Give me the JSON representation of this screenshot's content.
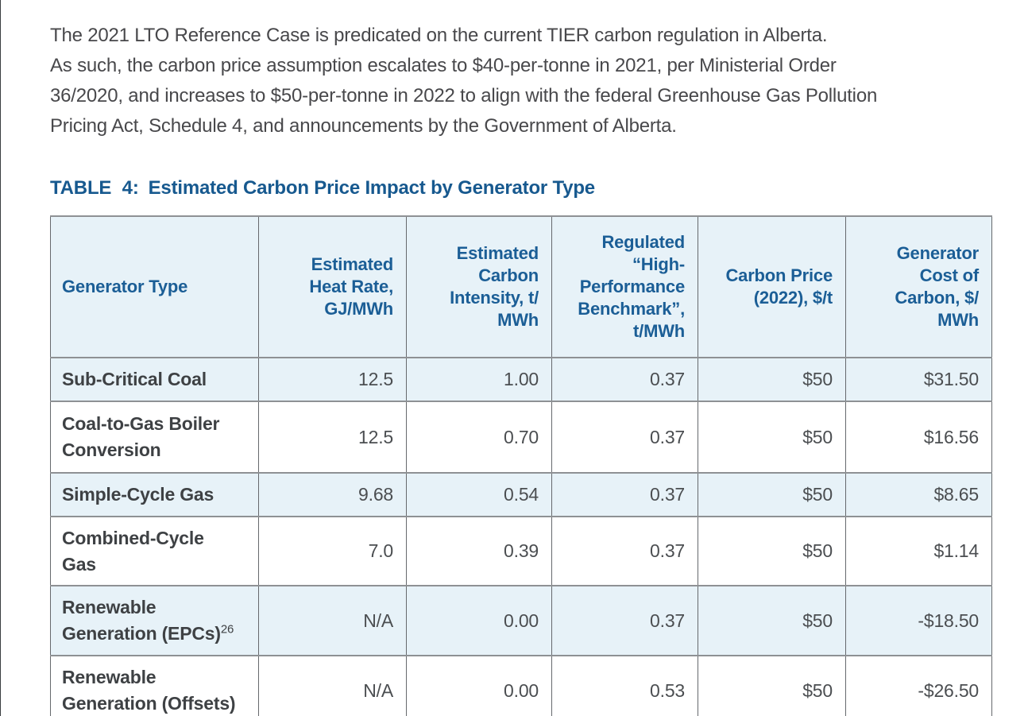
{
  "intro": {
    "lines": [
      "The 2021 LTO Reference Case is predicated on the current TIER carbon regulation in Alberta.",
      "As such, the carbon price assumption escalates to $40-per-tonne in 2021, per Ministerial Order",
      "36/2020, and increases to $50-per-tonne in 2022 to align with the federal Greenhouse Gas Pollution",
      "Pricing Act, Schedule 4, and announcements by the Government of Alberta."
    ]
  },
  "caption": {
    "label": "TABLE  4:",
    "title": "Estimated Carbon Price Impact by Generator Type"
  },
  "table": {
    "headers": [
      "Generator Type",
      "Estimated\nHeat Rate,\nGJ/MWh",
      "Estimated\nCarbon\nIntensity, t/\nMWh",
      "Regulated\n“High-\nPerformance\nBenchmark”,\nt/MWh",
      "Carbon Price\n(2022), $/t",
      "Generator\nCost of\nCarbon, $/\nMWh"
    ],
    "rows": [
      {
        "name": "Sub-Critical Coal",
        "values": [
          "12.5",
          "1.00",
          "0.37",
          "$50",
          "$31.50"
        ]
      },
      {
        "name": "Coal-to-Gas Boiler\nConversion",
        "values": [
          "12.5",
          "0.70",
          "0.37",
          "$50",
          "$16.56"
        ]
      },
      {
        "name": "Simple-Cycle Gas",
        "values": [
          "9.68",
          "0.54",
          "0.37",
          "$50",
          "$8.65"
        ]
      },
      {
        "name": "Combined-Cycle\nGas",
        "values": [
          "7.0",
          "0.39",
          "0.37",
          "$50",
          "$1.14"
        ]
      },
      {
        "name": "Renewable\nGeneration (EPCs)",
        "footnote": "26",
        "values": [
          "N/A",
          "0.00",
          "0.37",
          "$50",
          "-$18.50"
        ]
      },
      {
        "name": "Renewable\nGeneration (Offsets)",
        "values": [
          "N/A",
          "0.00",
          "0.53",
          "$50",
          "-$26.50"
        ]
      }
    ]
  },
  "colors": {
    "accent_blue": "#1b5e96",
    "header_fill": "#e7f2f8",
    "body_text": "#48484b",
    "grid_line": "#8e9194"
  }
}
